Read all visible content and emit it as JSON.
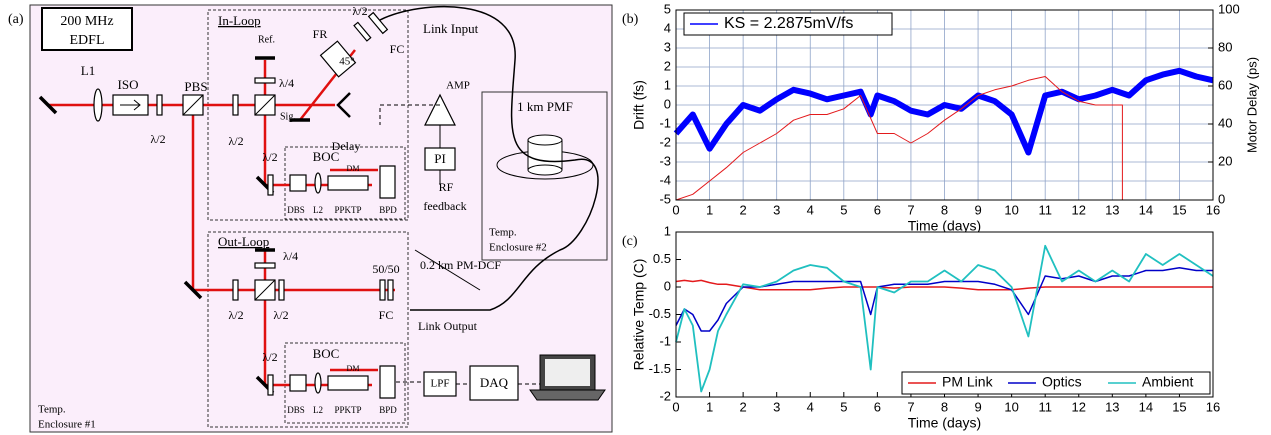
{
  "diagram": {
    "panel_label": "(a)",
    "labels": [
      "200 MHz",
      "EDFL",
      "L1",
      "ISO",
      "λ/2",
      "PBS",
      "In-Loop",
      "Ref.",
      "λ/4",
      "Sig.",
      "λ/2",
      "FR",
      "45°",
      "λ/2",
      "FC",
      "Link Input",
      "Delay",
      "AMP",
      "PI",
      "RF",
      "feedback",
      "1 km PMF",
      "Temp.",
      "Enclosure #2",
      "BOC",
      "λ/2",
      "DM",
      "DBS",
      "L2",
      "PPKTP",
      "BPD",
      "Out-Loop",
      "λ/4",
      "λ/2",
      "λ/2",
      "50/50",
      "FC",
      "0.2 km PM-DCF",
      "Link Output",
      "BOC",
      "λ/2",
      "DM",
      "DBS",
      "L2",
      "PPKTP",
      "BPD",
      "LPF",
      "DAQ",
      "Temp.",
      "Enclosure #1"
    ]
  },
  "chart_data": [
    {
      "type": "line",
      "label": "(b)",
      "xlabel": "Time (days)",
      "ylabel": "Drift (fs)",
      "y2label": "Motor Delay (ps)",
      "ylabel_color": "#0000ff",
      "y2label_color": "#e31a1c",
      "xlim": [
        0,
        16
      ],
      "xticks": [
        0,
        1,
        2,
        3,
        4,
        5,
        6,
        7,
        8,
        9,
        10,
        11,
        12,
        13,
        14,
        15,
        16
      ],
      "ylim": [
        -5,
        5
      ],
      "yticks": [
        -5,
        -4,
        -3,
        -2,
        -1,
        0,
        1,
        2,
        3,
        4,
        5
      ],
      "y2lim": [
        0,
        100
      ],
      "y2ticks": [
        0,
        20,
        40,
        60,
        80,
        100
      ],
      "grid": true,
      "legend": "upper left",
      "series": [
        {
          "name": "KS = 2.2875mV/fs",
          "color": "#0000ff",
          "linewidth": 6,
          "x": [
            0,
            0.5,
            1,
            1.5,
            2,
            2.5,
            3,
            3.5,
            4,
            4.5,
            5,
            5.5,
            5.8,
            6,
            6.5,
            7,
            7.5,
            8,
            8.5,
            9,
            9.5,
            10,
            10.5,
            11,
            11.5,
            12,
            12.5,
            13,
            13.5,
            14,
            14.5,
            15,
            15.5,
            16
          ],
          "values": [
            -1.5,
            -0.5,
            -2.3,
            -1,
            0,
            -0.3,
            0.3,
            0.8,
            0.6,
            0.3,
            0.5,
            0.7,
            -0.5,
            0.5,
            0.2,
            -0.3,
            -0.5,
            0,
            -0.2,
            0.5,
            0.2,
            -0.5,
            -2.5,
            0.5,
            0.7,
            0.3,
            0.5,
            0.8,
            0.5,
            1.3,
            1.6,
            1.8,
            1.5,
            1.3
          ]
        },
        {
          "color": "#e31a1c",
          "axis": "y2",
          "linewidth": 1,
          "x": [
            0,
            0.5,
            1,
            1.5,
            2,
            2.5,
            3,
            3.5,
            4,
            4.5,
            5,
            5.5,
            6,
            6.5,
            7,
            7.5,
            8,
            8.5,
            9,
            9.5,
            10,
            10.5,
            11,
            11.5,
            12,
            12.5,
            13,
            13.3,
            13.3
          ],
          "values": [
            0,
            3,
            10,
            17,
            25,
            30,
            35,
            42,
            45,
            45,
            48,
            55,
            35,
            35,
            30,
            35,
            42,
            48,
            55,
            58,
            60,
            63,
            65,
            57,
            52,
            50,
            50,
            50,
            0
          ]
        }
      ]
    },
    {
      "type": "line",
      "label": "(c)",
      "xlabel": "Time (days)",
      "ylabel": "Relative Temp (C)",
      "xlim": [
        0,
        16
      ],
      "xticks": [
        0,
        1,
        2,
        3,
        4,
        5,
        6,
        7,
        8,
        9,
        10,
        11,
        12,
        13,
        14,
        15,
        16
      ],
      "ylim": [
        -2,
        1
      ],
      "yticks": [
        -2,
        -1.5,
        -1,
        -0.5,
        0,
        0.5,
        1
      ],
      "grid": false,
      "legend": "lower right",
      "x": [
        0,
        0.25,
        0.5,
        0.75,
        1,
        1.25,
        1.5,
        2,
        2.5,
        3,
        3.5,
        4,
        4.5,
        5,
        5.5,
        5.8,
        6,
        6.5,
        7,
        7.5,
        8,
        8.5,
        9,
        9.5,
        10,
        10.5,
        11,
        11.5,
        12,
        12.5,
        13,
        13.5,
        14,
        14.5,
        15,
        15.5,
        16
      ],
      "series": [
        {
          "name": "PM Link",
          "color": "#e31a1c",
          "linewidth": 1.5,
          "values": [
            0.1,
            0.12,
            0.1,
            0.12,
            0.08,
            0.05,
            0.05,
            0,
            -0.05,
            -0.05,
            -0.05,
            -0.05,
            -0.02,
            0,
            0,
            0,
            0,
            -0.02,
            0,
            0,
            0,
            -0.02,
            -0.05,
            -0.05,
            -0.05,
            -0.02,
            0,
            0,
            0,
            0,
            0,
            0,
            0,
            0,
            0,
            0,
            0
          ]
        },
        {
          "name": "Optics",
          "color": "#0000c8",
          "linewidth": 1.5,
          "values": [
            -0.7,
            -0.4,
            -0.5,
            -0.8,
            -0.8,
            -0.6,
            -0.3,
            0,
            0,
            0.05,
            0.1,
            0.1,
            0.1,
            0.1,
            0.1,
            -0.5,
            0,
            0.05,
            0.05,
            0.05,
            0.1,
            0.1,
            0.1,
            0.05,
            -0.05,
            -0.5,
            0.2,
            0.15,
            0.2,
            0.1,
            0.2,
            0.2,
            0.3,
            0.3,
            0.35,
            0.3,
            0.3
          ]
        },
        {
          "name": "Ambient",
          "color": "#20c0c0",
          "linewidth": 1.8,
          "values": [
            -1,
            -0.4,
            -0.7,
            -1.9,
            -1.5,
            -0.8,
            -0.5,
            0.05,
            0,
            0.1,
            0.3,
            0.4,
            0.35,
            0.1,
            0,
            -1.5,
            0,
            -0.1,
            0.1,
            0.1,
            0.3,
            0.1,
            0.4,
            0.3,
            0,
            -0.9,
            0.75,
            0.1,
            0.3,
            0.1,
            0.3,
            0.1,
            0.6,
            0.4,
            0.6,
            0.4,
            0.2
          ]
        }
      ]
    }
  ]
}
